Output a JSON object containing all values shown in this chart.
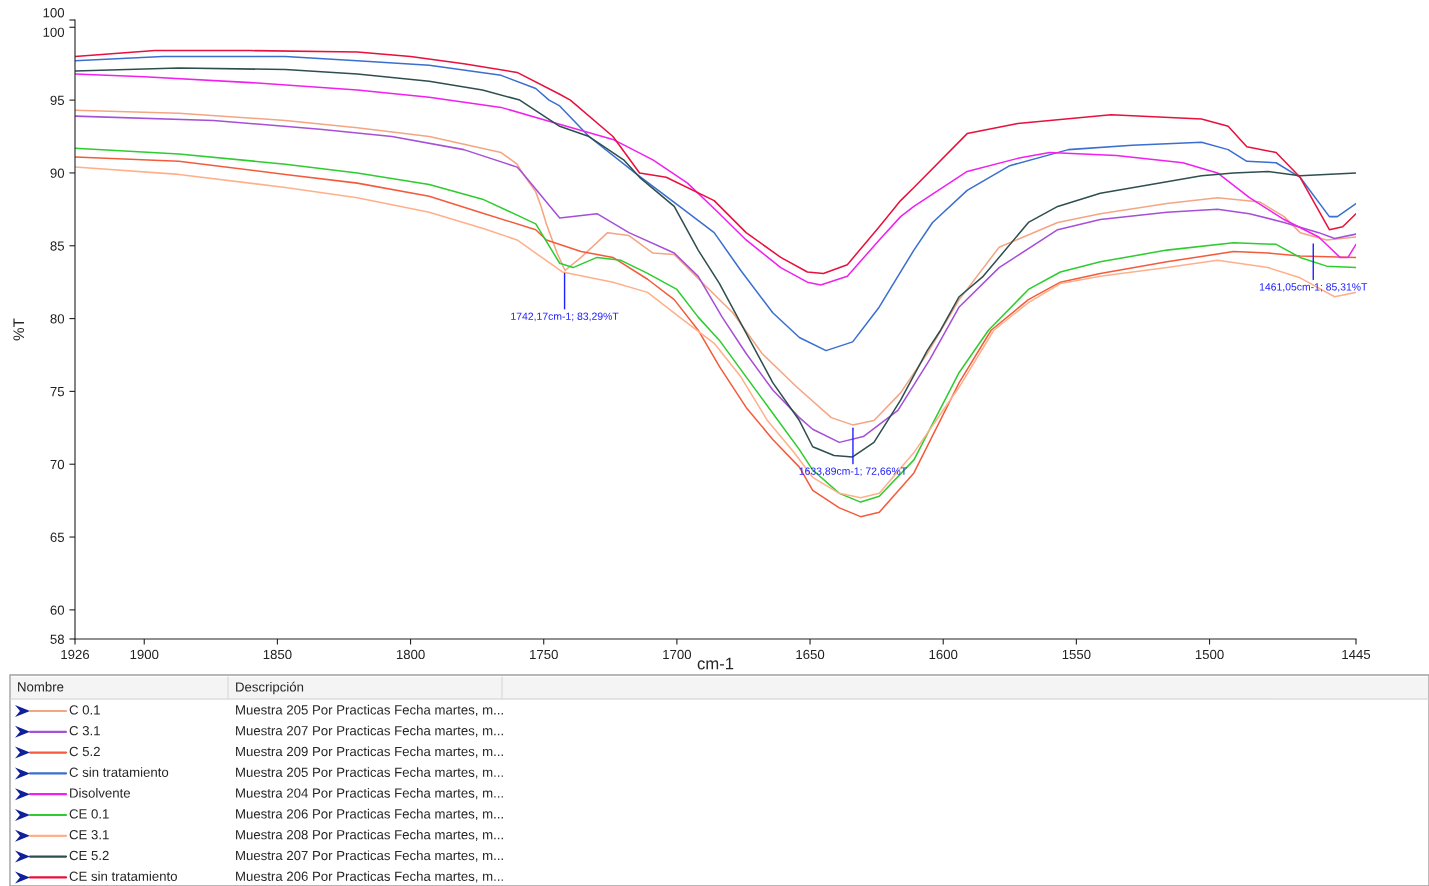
{
  "chart_data": {
    "type": "line",
    "xlabel": "cm-1",
    "ylabel": "%T",
    "legend_title": "Nombre",
    "legend": "bottom",
    "grid": false,
    "marker": "none",
    "line_style": "solid",
    "xlim": [
      1926,
      1445
    ],
    "xticks": [
      1926,
      1900,
      1850,
      1800,
      1750,
      1700,
      1650,
      1600,
      1550,
      1500,
      1445
    ],
    "ylim": [
      58,
      100.5
    ],
    "yticks": [
      58,
      60,
      65,
      70,
      75,
      80,
      85,
      90,
      95,
      100,
      {
        "value": 100.5,
        "label": "100"
      }
    ],
    "series": [
      {
        "name": "C 0.1",
        "color": "#f4a582",
        "x": [
          1926,
          1887,
          1847,
          1820,
          1793,
          1766,
          1760,
          1758,
          1753,
          1751,
          1749,
          1745,
          1742,
          1736,
          1726,
          1718,
          1709,
          1701,
          1689,
          1679,
          1668,
          1655,
          1642,
          1634,
          1626,
          1616,
          1606,
          1594,
          1579,
          1557,
          1541,
          1516,
          1497,
          1481,
          1472,
          1466,
          1456,
          1445
        ],
        "values": [
          94.3,
          94.1,
          93.6,
          93.1,
          92.5,
          91.4,
          90.6,
          90.0,
          88.7,
          87.7,
          86.5,
          84.5,
          83.3,
          84.2,
          85.9,
          85.7,
          84.5,
          84.4,
          82.2,
          80.4,
          77.6,
          75.3,
          73.2,
          72.7,
          73.0,
          74.9,
          77.6,
          81.3,
          84.9,
          86.6,
          87.2,
          87.9,
          88.3,
          88.0,
          87.0,
          85.9,
          85.4,
          85.6
        ]
      },
      {
        "name": "C 3.1",
        "color": "#a64fd8",
        "x": [
          1926,
          1874,
          1834,
          1807,
          1780,
          1760,
          1758,
          1744,
          1730,
          1718,
          1701,
          1692,
          1683,
          1674,
          1664,
          1654,
          1649,
          1639,
          1630,
          1617,
          1605,
          1594,
          1579,
          1557,
          1541,
          1516,
          1497,
          1485,
          1472,
          1459,
          1453,
          1445
        ],
        "values": [
          93.9,
          93.6,
          93.0,
          92.5,
          91.6,
          90.4,
          90.0,
          86.9,
          87.2,
          85.9,
          84.5,
          82.9,
          80.1,
          77.6,
          75.1,
          73.2,
          72.4,
          71.5,
          71.9,
          73.7,
          77.2,
          80.8,
          83.5,
          86.1,
          86.8,
          87.3,
          87.5,
          87.2,
          86.6,
          85.9,
          85.5,
          85.8
        ]
      },
      {
        "name": "C 5.2",
        "color": "#f25c3c",
        "x": [
          1926,
          1887,
          1847,
          1820,
          1793,
          1774,
          1753,
          1749,
          1736,
          1724,
          1711,
          1701,
          1692,
          1684,
          1674,
          1664,
          1654,
          1649,
          1639,
          1631,
          1624,
          1611,
          1594,
          1582,
          1568,
          1556,
          1541,
          1516,
          1491,
          1478,
          1466,
          1445
        ],
        "values": [
          91.1,
          90.8,
          89.9,
          89.3,
          88.4,
          87.3,
          86.1,
          85.4,
          84.6,
          84.2,
          82.7,
          81.3,
          79.2,
          76.7,
          73.9,
          71.7,
          69.8,
          68.2,
          67.0,
          66.4,
          66.7,
          69.4,
          75.6,
          79.2,
          81.3,
          82.5,
          83.1,
          83.9,
          84.6,
          84.5,
          84.3,
          84.2
        ]
      },
      {
        "name": "C sin tratamiento",
        "color": "#3a6fd0",
        "x": [
          1926,
          1893,
          1847,
          1820,
          1793,
          1766,
          1753,
          1748,
          1744,
          1733,
          1715,
          1699,
          1686,
          1676,
          1664,
          1654,
          1644,
          1634,
          1624,
          1616,
          1611,
          1604,
          1591,
          1575,
          1553,
          1529,
          1503,
          1493,
          1486,
          1475,
          1466,
          1455,
          1452,
          1445
        ],
        "values": [
          97.7,
          98.0,
          98.0,
          97.7,
          97.4,
          96.7,
          95.8,
          95.0,
          94.6,
          92.5,
          89.9,
          87.7,
          85.9,
          83.3,
          80.4,
          78.7,
          77.8,
          78.4,
          80.8,
          83.2,
          84.7,
          86.6,
          88.8,
          90.5,
          91.6,
          91.9,
          92.1,
          91.6,
          90.8,
          90.7,
          89.7,
          87.0,
          87.0,
          87.9
        ]
      },
      {
        "name": "Disolvente",
        "color": "#f020f0",
        "x": [
          1926,
          1900,
          1860,
          1820,
          1793,
          1766,
          1749,
          1724,
          1709,
          1696,
          1684,
          1674,
          1661,
          1651,
          1646,
          1636,
          1624,
          1616,
          1611,
          1591,
          1572,
          1560,
          1535,
          1510,
          1497,
          1485,
          1472,
          1459,
          1451,
          1448,
          1445
        ],
        "values": [
          96.8,
          96.6,
          96.2,
          95.7,
          95.2,
          94.5,
          93.6,
          92.3,
          90.9,
          89.3,
          87.2,
          85.4,
          83.5,
          82.5,
          82.3,
          82.9,
          85.4,
          87.0,
          87.7,
          90.1,
          91.0,
          91.4,
          91.2,
          90.7,
          90.0,
          88.3,
          86.8,
          85.6,
          84.2,
          84.2,
          85.1
        ]
      },
      {
        "name": "CE 0.1",
        "color": "#2ecc2e",
        "x": [
          1926,
          1887,
          1847,
          1820,
          1793,
          1773,
          1760,
          1753,
          1751,
          1744,
          1739,
          1730,
          1721,
          1711,
          1700,
          1692,
          1684,
          1674,
          1664,
          1654,
          1649,
          1639,
          1631,
          1624,
          1611,
          1594,
          1583,
          1568,
          1556,
          1541,
          1516,
          1491,
          1475,
          1466,
          1456,
          1445
        ],
        "values": [
          91.7,
          91.3,
          90.6,
          90.0,
          89.2,
          88.2,
          87.1,
          86.5,
          85.9,
          83.8,
          83.5,
          84.2,
          84.0,
          83.1,
          82.0,
          80.1,
          78.5,
          76.0,
          73.5,
          71.0,
          69.6,
          68.0,
          67.4,
          67.8,
          70.3,
          76.3,
          79.2,
          82.0,
          83.2,
          83.9,
          84.7,
          85.2,
          85.1,
          84.2,
          83.6,
          83.5
        ]
      },
      {
        "name": "CE 3.1",
        "color": "#ffb08a",
        "x": [
          1926,
          1887,
          1847,
          1820,
          1793,
          1773,
          1760,
          1743,
          1724,
          1711,
          1699,
          1686,
          1676,
          1666,
          1656,
          1649,
          1639,
          1631,
          1624,
          1611,
          1594,
          1581,
          1568,
          1556,
          1541,
          1516,
          1497,
          1478,
          1466,
          1453,
          1445
        ],
        "values": [
          90.4,
          89.9,
          89.0,
          88.3,
          87.3,
          86.2,
          85.4,
          83.2,
          82.5,
          81.8,
          80.1,
          78.3,
          76.0,
          73.0,
          70.8,
          69.1,
          68.0,
          67.7,
          68.0,
          70.8,
          75.3,
          79.2,
          81.1,
          82.4,
          82.9,
          83.5,
          84.0,
          83.5,
          82.8,
          81.5,
          81.8
        ]
      },
      {
        "name": "CE 5.2",
        "color": "#2f4f4f",
        "x": [
          1926,
          1887,
          1847,
          1820,
          1793,
          1773,
          1759,
          1744,
          1733,
          1720,
          1714,
          1701,
          1692,
          1684,
          1674,
          1664,
          1654,
          1649,
          1641,
          1634,
          1626,
          1616,
          1606,
          1601,
          1594,
          1585,
          1568,
          1557,
          1541,
          1516,
          1503,
          1491,
          1478,
          1466,
          1445
        ],
        "values": [
          97.0,
          97.2,
          97.1,
          96.8,
          96.3,
          95.7,
          95.0,
          93.2,
          92.5,
          90.9,
          89.7,
          87.7,
          84.7,
          82.4,
          79.0,
          75.6,
          73.0,
          71.2,
          70.6,
          70.5,
          71.5,
          74.4,
          77.8,
          79.2,
          81.5,
          82.9,
          86.6,
          87.7,
          88.6,
          89.4,
          89.8,
          90.0,
          90.1,
          89.8,
          90.0
        ]
      },
      {
        "name": "CE sin tratamiento",
        "color": "#e8103c",
        "x": [
          1926,
          1896,
          1860,
          1820,
          1800,
          1780,
          1760,
          1744,
          1740,
          1724,
          1714,
          1704,
          1686,
          1674,
          1661,
          1651,
          1645,
          1636,
          1624,
          1616,
          1611,
          1591,
          1572,
          1537,
          1503,
          1493,
          1486,
          1475,
          1466,
          1455,
          1450,
          1445
        ],
        "values": [
          98.0,
          98.4,
          98.4,
          98.3,
          98.0,
          97.5,
          96.9,
          95.4,
          95.0,
          92.5,
          90.0,
          89.7,
          88.1,
          85.9,
          84.2,
          83.2,
          83.1,
          83.7,
          86.3,
          88.1,
          89.0,
          92.7,
          93.4,
          94.0,
          93.7,
          93.2,
          91.8,
          91.4,
          89.7,
          86.1,
          86.3,
          87.2
        ]
      }
    ],
    "annotations": [
      {
        "text": "1742,17cm-1; 83,29%T",
        "x": 1742.17,
        "y": 83.29
      },
      {
        "text": "1633,89cm-1; 72,66%T",
        "x": 1633.89,
        "y": 72.66
      },
      {
        "text": "1461,05cm-1; 85,31%T",
        "x": 1461.05,
        "y": 85.31
      },
      "Descripción",
      "Muestra 205 Por Practicas Fecha martes, m...",
      "Muestra 207 Por Practicas Fecha martes, m...",
      "Muestra 209 Por Practicas Fecha martes, m...",
      "Muestra 205 Por Practicas Fecha martes, m...",
      "Muestra 204 Por Practicas Fecha martes, m...",
      "Muestra 206 Por Practicas Fecha martes, m...",
      "Muestra 208 Por Practicas Fecha martes, m...",
      "Muestra 207 Por Practicas Fecha martes, m...",
      "Muestra 206 Por Practicas Fecha martes, m..."
    ]
  }
}
